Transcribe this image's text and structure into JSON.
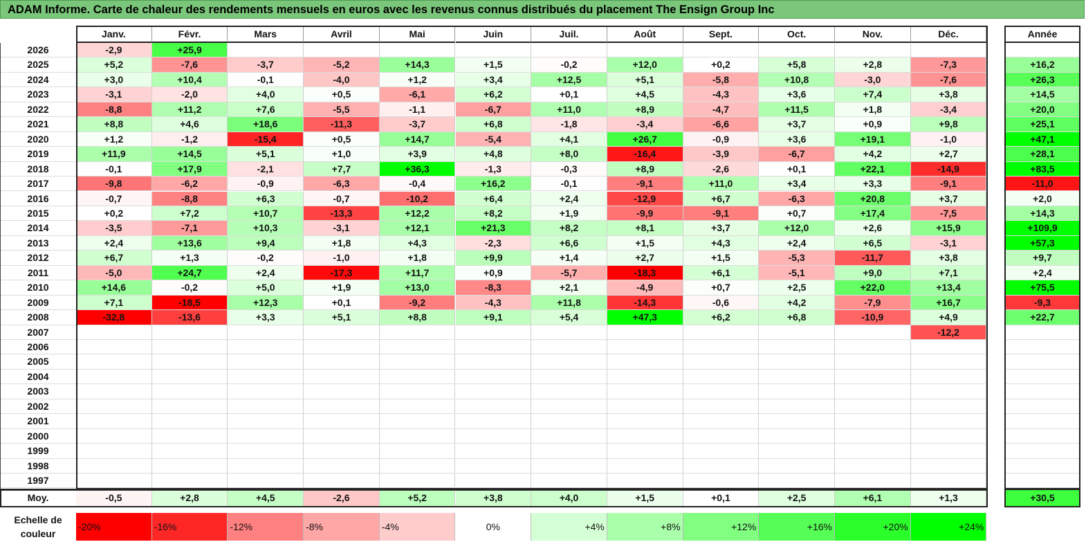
{
  "title": "ADAM Informe. Carte de chaleur des rendements mensuels en euros avec les revenus connus distribués du placement The Ensign Group Inc",
  "chart_data": {
    "type": "heatmap",
    "title": "ADAM Informe. Carte de chaleur des rendements mensuels en euros avec les revenus connus distribués du placement The Ensign Group Inc",
    "months": [
      "Janv.",
      "Févr.",
      "Mars",
      "Avril",
      "Mai",
      "Juin",
      "Juil.",
      "Août",
      "Sept.",
      "Oct.",
      "Nov.",
      "Déc."
    ],
    "year_header": "Année",
    "rows": [
      {
        "year": "2026",
        "values": [
          -2.9,
          25.9,
          null,
          null,
          null,
          null,
          null,
          null,
          null,
          null,
          null,
          null
        ],
        "annual": null
      },
      {
        "year": "2025",
        "values": [
          5.2,
          -7.6,
          -3.7,
          -5.2,
          14.3,
          1.5,
          -0.2,
          12.0,
          0.2,
          5.8,
          2.8,
          -7.3
        ],
        "annual": 16.2
      },
      {
        "year": "2024",
        "values": [
          3.0,
          10.4,
          -0.1,
          -4.0,
          1.2,
          3.4,
          12.5,
          5.1,
          -5.8,
          10.8,
          -3.0,
          -7.6
        ],
        "annual": 26.3
      },
      {
        "year": "2023",
        "values": [
          -3.1,
          -2.0,
          4.0,
          0.5,
          -6.1,
          6.2,
          0.1,
          4.5,
          -4.3,
          3.6,
          7.4,
          3.8
        ],
        "annual": 14.5
      },
      {
        "year": "2022",
        "values": [
          -8.8,
          11.2,
          7.6,
          -5.5,
          -1.1,
          -6.7,
          11.0,
          8.9,
          -4.7,
          11.5,
          1.8,
          -3.4
        ],
        "annual": 20.0
      },
      {
        "year": "2021",
        "values": [
          8.8,
          4.6,
          18.6,
          -11.3,
          -3.7,
          6.8,
          -1.8,
          -3.4,
          -6.6,
          3.7,
          0.9,
          9.8
        ],
        "annual": 25.1
      },
      {
        "year": "2020",
        "values": [
          1.2,
          -1.2,
          -15.4,
          0.5,
          14.7,
          -5.4,
          4.1,
          26.7,
          -0.9,
          3.6,
          19.1,
          -1.0
        ],
        "annual": 47.1
      },
      {
        "year": "2019",
        "values": [
          11.9,
          14.5,
          5.1,
          1.0,
          3.9,
          4.8,
          8.0,
          -16.4,
          -3.9,
          -6.7,
          4.2,
          2.7
        ],
        "annual": 28.1
      },
      {
        "year": "2018",
        "values": [
          -0.1,
          17.9,
          -2.1,
          7.7,
          36.3,
          -1.3,
          -0.3,
          8.9,
          -2.6,
          0.1,
          22.1,
          -14.9
        ],
        "annual": 83.5
      },
      {
        "year": "2017",
        "values": [
          -9.8,
          -6.2,
          -0.9,
          -6.3,
          -0.4,
          16.2,
          -0.1,
          -9.1,
          11.0,
          3.4,
          3.3,
          -9.1
        ],
        "annual": -11.0
      },
      {
        "year": "2016",
        "values": [
          -0.7,
          -8.8,
          6.3,
          -0.7,
          -10.2,
          6.4,
          2.4,
          -12.9,
          6.7,
          -6.3,
          20.8,
          3.7
        ],
        "annual": 2.0
      },
      {
        "year": "2015",
        "values": [
          0.2,
          7.2,
          10.7,
          -13.3,
          12.2,
          8.2,
          1.9,
          -9.9,
          -9.1,
          0.7,
          17.4,
          -7.5
        ],
        "annual": 14.3
      },
      {
        "year": "2014",
        "values": [
          -3.5,
          -7.1,
          10.3,
          -3.1,
          12.1,
          21.3,
          8.2,
          8.1,
          3.7,
          12.0,
          2.6,
          15.9
        ],
        "annual": 109.9
      },
      {
        "year": "2013",
        "values": [
          2.4,
          13.6,
          9.4,
          1.8,
          4.3,
          -2.3,
          6.6,
          1.5,
          4.3,
          2.4,
          6.5,
          -3.1
        ],
        "annual": 57.3
      },
      {
        "year": "2012",
        "values": [
          6.7,
          1.3,
          -0.2,
          -1.0,
          1.8,
          9.9,
          1.4,
          2.7,
          1.5,
          -5.3,
          -11.7,
          3.8
        ],
        "annual": 9.7
      },
      {
        "year": "2011",
        "values": [
          -5.0,
          24.7,
          2.4,
          -17.3,
          11.7,
          0.9,
          -5.7,
          -18.3,
          6.1,
          -5.1,
          9.0,
          7.1
        ],
        "annual": 2.4
      },
      {
        "year": "2010",
        "values": [
          14.6,
          -0.2,
          5.0,
          1.9,
          13.0,
          -8.3,
          2.1,
          -4.9,
          0.7,
          2.5,
          22.0,
          13.4
        ],
        "annual": 75.5
      },
      {
        "year": "2009",
        "values": [
          7.1,
          -18.5,
          12.3,
          0.1,
          -9.2,
          -4.3,
          11.8,
          -14.3,
          -0.6,
          4.2,
          -7.9,
          16.7
        ],
        "annual": -9.3
      },
      {
        "year": "2008",
        "values": [
          -32.8,
          -13.6,
          3.3,
          5.1,
          8.8,
          9.1,
          5.4,
          47.3,
          6.2,
          6.8,
          -10.9,
          4.9
        ],
        "annual": 22.7
      },
      {
        "year": "2007",
        "values": [
          null,
          null,
          null,
          null,
          null,
          null,
          null,
          null,
          null,
          null,
          null,
          -12.2
        ],
        "annual": null
      },
      {
        "year": "2006",
        "values": [
          null,
          null,
          null,
          null,
          null,
          null,
          null,
          null,
          null,
          null,
          null,
          null
        ],
        "annual": null
      },
      {
        "year": "2005",
        "values": [
          null,
          null,
          null,
          null,
          null,
          null,
          null,
          null,
          null,
          null,
          null,
          null
        ],
        "annual": null
      },
      {
        "year": "2004",
        "values": [
          null,
          null,
          null,
          null,
          null,
          null,
          null,
          null,
          null,
          null,
          null,
          null
        ],
        "annual": null
      },
      {
        "year": "2003",
        "values": [
          null,
          null,
          null,
          null,
          null,
          null,
          null,
          null,
          null,
          null,
          null,
          null
        ],
        "annual": null
      },
      {
        "year": "2002",
        "values": [
          null,
          null,
          null,
          null,
          null,
          null,
          null,
          null,
          null,
          null,
          null,
          null
        ],
        "annual": null
      },
      {
        "year": "2001",
        "values": [
          null,
          null,
          null,
          null,
          null,
          null,
          null,
          null,
          null,
          null,
          null,
          null
        ],
        "annual": null
      },
      {
        "year": "2000",
        "values": [
          null,
          null,
          null,
          null,
          null,
          null,
          null,
          null,
          null,
          null,
          null,
          null
        ],
        "annual": null
      },
      {
        "year": "1999",
        "values": [
          null,
          null,
          null,
          null,
          null,
          null,
          null,
          null,
          null,
          null,
          null,
          null
        ],
        "annual": null
      },
      {
        "year": "1998",
        "values": [
          null,
          null,
          null,
          null,
          null,
          null,
          null,
          null,
          null,
          null,
          null,
          null
        ],
        "annual": null
      },
      {
        "year": "1997",
        "values": [
          null,
          null,
          null,
          null,
          null,
          null,
          null,
          null,
          null,
          null,
          null,
          null
        ],
        "annual": null
      }
    ],
    "average": {
      "label": "Moy.",
      "values": [
        -0.5,
        2.8,
        4.5,
        -2.6,
        5.2,
        3.8,
        4.0,
        1.5,
        0.1,
        2.5,
        6.1,
        1.3
      ],
      "annual": 30.5
    },
    "color_scale": {
      "label": "Echelle de couleur",
      "steps": [
        "-20%",
        "-16%",
        "-12%",
        "-8%",
        "-4%",
        "0%",
        "+4%",
        "+8%",
        "+12%",
        "+16%",
        "+20%",
        "+24%"
      ],
      "step_values": [
        -20,
        -16,
        -12,
        -8,
        -4,
        0,
        4,
        8,
        12,
        16,
        20,
        24
      ],
      "negative_color": "#ff0000",
      "neutral_color": "#ffffff",
      "positive_color": "#00ff00"
    }
  }
}
